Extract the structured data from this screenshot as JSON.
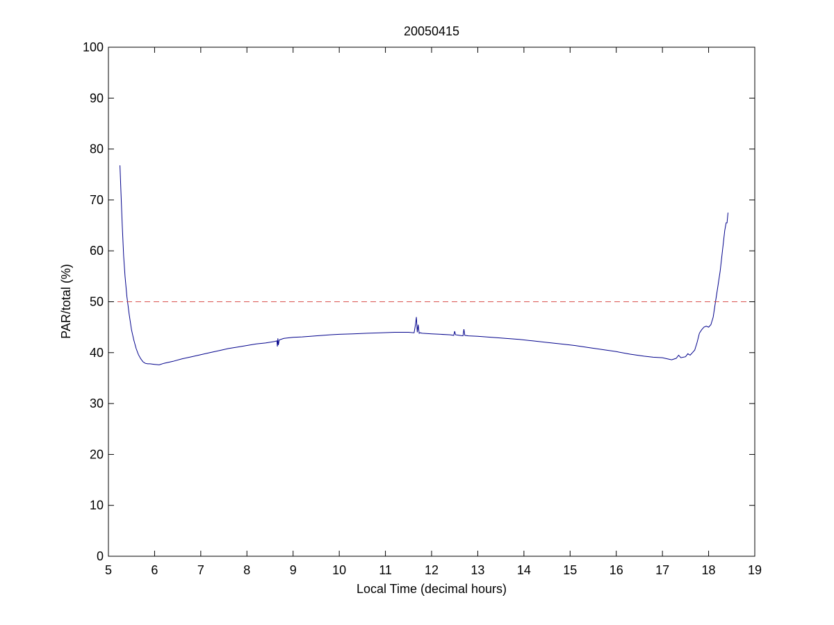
{
  "chart_data": {
    "type": "line",
    "title": "20050415",
    "xlabel": "Local Time (decimal hours)",
    "ylabel": "PAR/total (%)",
    "xlim": [
      5,
      19
    ],
    "ylim": [
      0,
      100
    ],
    "xticks": [
      5,
      6,
      7,
      8,
      9,
      10,
      11,
      12,
      13,
      14,
      15,
      16,
      17,
      18,
      19
    ],
    "yticks": [
      0,
      10,
      20,
      30,
      40,
      50,
      60,
      70,
      80,
      90,
      100
    ],
    "grid": false,
    "legend": "none",
    "series": [
      {
        "style": "solid",
        "color": "#00008b",
        "x": [
          5.25,
          5.27,
          5.3,
          5.33,
          5.36,
          5.4,
          5.45,
          5.5,
          5.55,
          5.6,
          5.65,
          5.7,
          5.75,
          5.8,
          5.85,
          5.9,
          6.0,
          6.1,
          6.2,
          6.4,
          6.6,
          6.8,
          7.0,
          7.2,
          7.4,
          7.6,
          7.8,
          8.0,
          8.2,
          8.4,
          8.6,
          8.65,
          8.66,
          8.67,
          8.68,
          8.7,
          8.8,
          9.0,
          9.2,
          9.5,
          9.8,
          10.0,
          10.3,
          10.6,
          10.9,
          11.2,
          11.5,
          11.62,
          11.65,
          11.67,
          11.69,
          11.71,
          11.73,
          11.75,
          11.8,
          12.0,
          12.2,
          12.4,
          12.48,
          12.5,
          12.52,
          12.6,
          12.68,
          12.7,
          12.72,
          12.8,
          13.0,
          13.3,
          13.6,
          13.9,
          14.2,
          14.5,
          14.8,
          15.1,
          15.4,
          15.7,
          16.0,
          16.3,
          16.6,
          16.8,
          17.0,
          17.1,
          17.2,
          17.3,
          17.35,
          17.4,
          17.5,
          17.55,
          17.6,
          17.65,
          17.7,
          17.75,
          17.8,
          17.85,
          17.9,
          17.95,
          18.0,
          18.05,
          18.1,
          18.15,
          18.2,
          18.25,
          18.3,
          18.35,
          18.38,
          18.4,
          18.42
        ],
        "y": [
          76.8,
          72.0,
          65.0,
          59.0,
          55.0,
          51.0,
          47.5,
          44.5,
          42.5,
          40.8,
          39.6,
          38.8,
          38.2,
          37.9,
          37.8,
          37.8,
          37.7,
          37.6,
          37.9,
          38.3,
          38.8,
          39.2,
          39.6,
          40.0,
          40.4,
          40.8,
          41.1,
          41.4,
          41.7,
          41.9,
          42.2,
          42.3,
          41.2,
          42.8,
          41.5,
          42.5,
          42.8,
          43.0,
          43.1,
          43.3,
          43.5,
          43.6,
          43.7,
          43.8,
          43.9,
          44.0,
          44.0,
          43.9,
          45.5,
          47.0,
          44.0,
          45.5,
          43.8,
          43.9,
          43.8,
          43.7,
          43.6,
          43.5,
          43.4,
          44.2,
          43.5,
          43.4,
          43.3,
          44.6,
          43.4,
          43.3,
          43.2,
          43.0,
          42.8,
          42.6,
          42.3,
          42.0,
          41.7,
          41.4,
          41.0,
          40.6,
          40.2,
          39.7,
          39.3,
          39.1,
          39.0,
          38.8,
          38.6,
          38.9,
          39.5,
          39.0,
          39.2,
          39.8,
          39.5,
          40.0,
          40.5,
          42.0,
          43.8,
          44.5,
          45.0,
          45.2,
          45.0,
          45.5,
          47.0,
          50.0,
          53.0,
          56.0,
          60.0,
          64.0,
          65.5,
          65.5,
          67.5
        ]
      },
      {
        "style": "dashed",
        "color": "#d9534f",
        "x": [
          5,
          19
        ],
        "y": [
          50,
          50
        ]
      }
    ]
  }
}
